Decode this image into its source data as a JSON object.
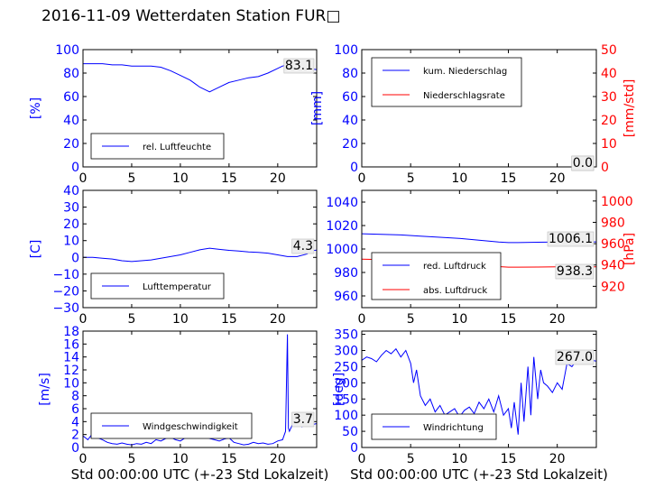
{
  "title": "2016-11-09 Wetterdaten Station FUR\u0000",
  "colors": {
    "blue": "#0000ff",
    "red": "#ff0000",
    "black": "#000000"
  },
  "chart_data": [
    {
      "id": "humidity",
      "type": "line",
      "xlim": [
        0,
        24
      ],
      "ylim": [
        0,
        100
      ],
      "xticks": [
        "0",
        "5",
        "10",
        "15",
        "20"
      ],
      "yticks": [
        "0",
        "20",
        "40",
        "60",
        "80",
        "100"
      ],
      "ylabel": "[%]",
      "xlabel": "",
      "current_value": "83.1",
      "legend": [
        "rel. Luftfeuchte"
      ],
      "series": [
        {
          "name": "rel. Luftfeuchte",
          "axis": "left",
          "color": "#0000ff",
          "x": [
            0,
            1,
            2,
            3,
            4,
            5,
            6,
            7,
            8,
            9,
            10,
            11,
            11.5,
            12,
            12.5,
            13,
            13.5,
            14,
            15,
            16,
            17,
            18,
            19,
            20,
            20.5,
            21,
            21.5,
            22,
            23,
            24
          ],
          "y": [
            88,
            88,
            88,
            87,
            87,
            86,
            86,
            86,
            85,
            82,
            78,
            74,
            71,
            68,
            66,
            64,
            66,
            68,
            72,
            74,
            76,
            77,
            80,
            84,
            86,
            87,
            86,
            85,
            84,
            83
          ]
        }
      ]
    },
    {
      "id": "precip",
      "type": "line",
      "xlim": [
        0,
        24
      ],
      "ylim": [
        0,
        100
      ],
      "ylim_right": [
        0,
        50
      ],
      "xticks": [
        "0",
        "5",
        "10",
        "15",
        "20"
      ],
      "yticks": [
        "0",
        "20",
        "40",
        "60",
        "80",
        "100"
      ],
      "yticks_right": [
        "0",
        "10",
        "20",
        "30",
        "40",
        "50"
      ],
      "ylabel": "[mm]",
      "ylabel_right": "[mm/std]",
      "xlabel": "",
      "current_value": "0.0",
      "current_value_2": "0.0",
      "legend": [
        "kum. Niederschlag",
        "Niederschlagsrate"
      ],
      "series": [
        {
          "name": "kum. Niederschlag",
          "axis": "left",
          "color": "#0000ff",
          "x": [
            0,
            24
          ],
          "y": [
            0,
            0
          ]
        },
        {
          "name": "Niederschlagsrate",
          "axis": "right",
          "color": "#ff0000",
          "x": [
            0,
            24
          ],
          "y": [
            0,
            0
          ]
        }
      ]
    },
    {
      "id": "temperature",
      "type": "line",
      "xlim": [
        0,
        24
      ],
      "ylim": [
        -30,
        40
      ],
      "xticks": [
        "0",
        "5",
        "10",
        "15",
        "20"
      ],
      "yticks": [
        "−30",
        "−20",
        "−10",
        "0",
        "10",
        "20",
        "30",
        "40"
      ],
      "ylabel": "[C]",
      "xlabel": "",
      "current_value": "4.3",
      "legend": [
        "Lufttemperatur"
      ],
      "series": [
        {
          "name": "Lufttemperatur",
          "axis": "left",
          "color": "#0000ff",
          "x": [
            0,
            1,
            2,
            3,
            4,
            5,
            6,
            7,
            8,
            9,
            10,
            11,
            12,
            13,
            14,
            15,
            16,
            17,
            18,
            19,
            20,
            21,
            22,
            23,
            23.5,
            24
          ],
          "y": [
            0,
            0,
            -0.5,
            -1,
            -2,
            -2.5,
            -2,
            -1.5,
            -0.5,
            0.5,
            1.5,
            3,
            4.5,
            5.5,
            4.8,
            4.2,
            3.8,
            3.2,
            3,
            2.5,
            1.5,
            0.5,
            0.5,
            2,
            4,
            4.3
          ]
        }
      ]
    },
    {
      "id": "pressure",
      "type": "line",
      "xlim": [
        0,
        24
      ],
      "ylim": [
        950,
        1050
      ],
      "ylim_right": [
        900,
        1010
      ],
      "xticks": [
        "0",
        "5",
        "10",
        "15",
        "20"
      ],
      "yticks": [
        "960",
        "980",
        "1000",
        "1020",
        "1040"
      ],
      "yticks_right": [
        "920",
        "940",
        "960",
        "980",
        "1000"
      ],
      "ylabel": "",
      "ylabel_right": "[hPa]",
      "xlabel": "",
      "current_value": "1006.1",
      "current_value_2": "938.3",
      "legend": [
        "red. Luftdruck",
        "abs. Luftdruck"
      ],
      "series": [
        {
          "name": "red. Luftdruck",
          "axis": "left",
          "color": "#0000ff",
          "x": [
            0,
            2,
            4,
            6,
            8,
            10,
            12,
            14,
            15,
            16,
            18,
            20,
            22,
            24
          ],
          "y": [
            1013,
            1012.5,
            1012,
            1011,
            1010,
            1009,
            1007.5,
            1006,
            1005.5,
            1005.5,
            1005.8,
            1006,
            1006.1,
            1006.1
          ]
        },
        {
          "name": "abs. Luftdruck",
          "axis": "right",
          "color": "#ff0000",
          "x": [
            0,
            2,
            4,
            6,
            8,
            10,
            12,
            14,
            15,
            16,
            18,
            20,
            22,
            24
          ],
          "y": [
            945.5,
            945,
            944.5,
            943.5,
            942.5,
            941.5,
            940,
            938.5,
            938,
            938,
            938.1,
            938.3,
            938.3,
            938.3
          ]
        }
      ]
    },
    {
      "id": "windspeed",
      "type": "line",
      "xlim": [
        0,
        24
      ],
      "ylim": [
        0,
        18
      ],
      "xticks": [
        "0",
        "5",
        "10",
        "15",
        "20"
      ],
      "yticks": [
        "0",
        "2",
        "4",
        "6",
        "8",
        "10",
        "12",
        "14",
        "16",
        "18"
      ],
      "ylabel": "[m/s]",
      "xlabel": "Std 00:00:00 UTC (+-23 Std Lokalzeit)",
      "current_value": "3.7",
      "legend": [
        "Windgeschwindigkeit"
      ],
      "series": [
        {
          "name": "Windgeschwindigkeit",
          "axis": "left",
          "color": "#0000ff",
          "x": [
            0,
            0.5,
            1,
            1.5,
            2,
            2.5,
            3,
            3.5,
            4,
            4.5,
            5,
            5.5,
            6,
            6.5,
            7,
            7.5,
            8,
            8.5,
            9,
            9.5,
            10,
            10.5,
            11,
            11.5,
            12,
            12.5,
            13,
            13.5,
            14,
            14.5,
            15,
            15.5,
            16,
            16.5,
            17,
            17.5,
            18,
            18.5,
            19,
            19.5,
            20,
            20.5,
            20.8,
            21,
            21.1,
            21.2,
            21.5,
            22,
            22.5,
            23,
            23.5,
            24
          ],
          "y": [
            1.8,
            1.2,
            2.2,
            1.5,
            1.2,
            0.8,
            0.6,
            0.5,
            0.7,
            0.5,
            0.4,
            0.6,
            0.5,
            0.8,
            0.6,
            1.2,
            1.0,
            1.4,
            1.6,
            1.2,
            1.0,
            1.5,
            1.8,
            2.0,
            1.6,
            1.8,
            1.4,
            1.2,
            1.0,
            1.3,
            1.5,
            0.8,
            0.6,
            0.4,
            0.5,
            0.8,
            0.6,
            0.7,
            0.5,
            0.6,
            1.0,
            1.2,
            2.5,
            17.5,
            3.0,
            2.5,
            3.5,
            4.0,
            3.2,
            4.5,
            3.5,
            3.7
          ]
        }
      ]
    },
    {
      "id": "winddir",
      "type": "line",
      "xlim": [
        0,
        24
      ],
      "ylim": [
        0,
        360
      ],
      "xticks": [
        "0",
        "5",
        "10",
        "15",
        "20"
      ],
      "yticks": [
        "0",
        "50",
        "100",
        "150",
        "200",
        "250",
        "300",
        "350"
      ],
      "ylabel": "[deg]",
      "xlabel": "Std 00:00:00 UTC (+-23 Std Lokalzeit)",
      "current_value": "267.0",
      "legend": [
        "Windrichtung"
      ],
      "series": [
        {
          "name": "Windrichtung",
          "axis": "left",
          "color": "#0000ff",
          "x": [
            0,
            0.5,
            1,
            1.5,
            2,
            2.5,
            3,
            3.5,
            4,
            4.5,
            5,
            5.3,
            5.6,
            6,
            6.5,
            7,
            7.5,
            8,
            8.5,
            9,
            9.5,
            10,
            10.5,
            11,
            11.5,
            12,
            12.5,
            13,
            13.5,
            14,
            14.5,
            15,
            15.3,
            15.6,
            16,
            16.3,
            16.6,
            17,
            17.3,
            17.6,
            18,
            18.3,
            18.6,
            19,
            19.5,
            20,
            20.5,
            21,
            21.5,
            22,
            22.5,
            23,
            23.5,
            24
          ],
          "y": [
            270,
            280,
            275,
            265,
            285,
            300,
            290,
            305,
            280,
            300,
            260,
            200,
            240,
            160,
            130,
            150,
            110,
            130,
            100,
            110,
            120,
            95,
            115,
            125,
            105,
            140,
            120,
            150,
            110,
            160,
            100,
            120,
            60,
            140,
            40,
            200,
            80,
            250,
            100,
            280,
            150,
            240,
            200,
            190,
            170,
            200,
            180,
            260,
            250,
            270,
            265,
            260,
            270,
            267
          ]
        }
      ]
    }
  ]
}
